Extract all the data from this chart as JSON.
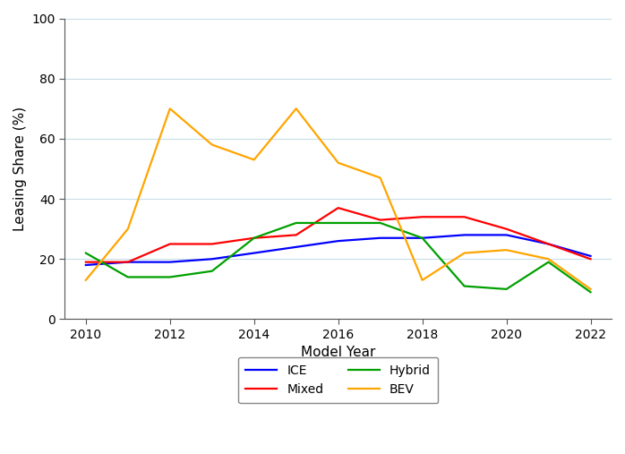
{
  "years": [
    2010,
    2011,
    2012,
    2013,
    2014,
    2015,
    2016,
    2017,
    2018,
    2019,
    2020,
    2021,
    2022
  ],
  "ICE": [
    18,
    19,
    19,
    20,
    22,
    24,
    26,
    27,
    27,
    28,
    28,
    25,
    21
  ],
  "Mixed": [
    19,
    19,
    25,
    25,
    27,
    28,
    37,
    33,
    34,
    34,
    30,
    25,
    20
  ],
  "Hybrid": [
    22,
    14,
    14,
    16,
    27,
    32,
    32,
    32,
    27,
    11,
    10,
    19,
    9
  ],
  "BEV": [
    13,
    30,
    70,
    58,
    53,
    70,
    52,
    47,
    13,
    22,
    23,
    20,
    10
  ],
  "colors": {
    "ICE": "#0000ff",
    "Mixed": "#ff0000",
    "Hybrid": "#00a000",
    "BEV": "#ffa500"
  },
  "xlabel": "Model Year",
  "ylabel": "Leasing Share (%)",
  "ylim": [
    0,
    100
  ],
  "yticks": [
    0,
    20,
    40,
    60,
    80,
    100
  ],
  "xticks": [
    2010,
    2012,
    2014,
    2016,
    2018,
    2020,
    2022
  ],
  "grid_color": "#c8dde8",
  "bg_color": "#ffffff",
  "line_width": 1.6
}
